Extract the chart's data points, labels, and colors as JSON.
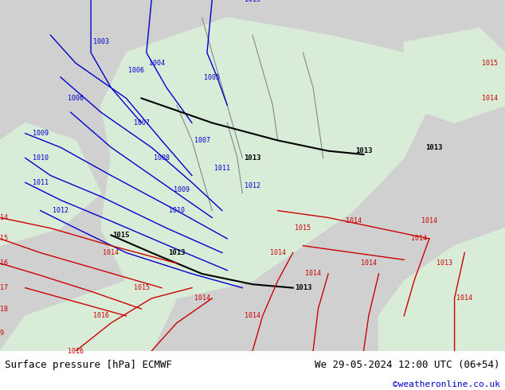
{
  "title_left": "Surface pressure [hPa] ECMWF",
  "title_right": "We 29-05-2024 12:00 UTC (06+54)",
  "credit": "©weatheronline.co.uk",
  "bg_color_main": "#d8ecd8",
  "bg_color_grey": "#d0d0d0",
  "bottom_bar_color": "#ffffff",
  "bottom_bar_height": 0.1,
  "fig_width": 6.34,
  "fig_height": 4.9,
  "dpi": 100,
  "left_label_color": "#000000",
  "right_label_color": "#000000",
  "credit_color": "#0000cc",
  "font_size_bottom": 9,
  "font_size_credit": 8
}
